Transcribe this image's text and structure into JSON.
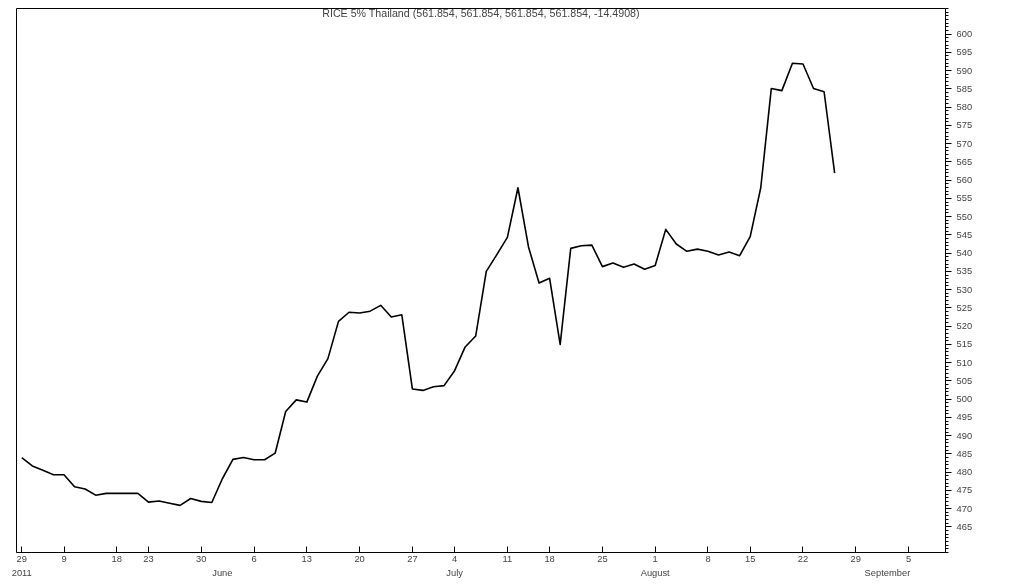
{
  "chart_data": {
    "type": "line",
    "title": "RICE 5% Thailand (561.854, 561.854, 561.854, 561.854, -14.4908)",
    "categories": [
      "29\n2011",
      null,
      null,
      null,
      "9",
      null,
      null,
      null,
      null,
      "18",
      null,
      null,
      "23",
      null,
      null,
      null,
      null,
      "30",
      null,
      "\nJune",
      null,
      null,
      "6",
      null,
      null,
      null,
      null,
      "13",
      null,
      null,
      null,
      null,
      "20",
      null,
      null,
      null,
      null,
      "27",
      null,
      null,
      null,
      "4\nJuly",
      null,
      null,
      null,
      null,
      "11",
      null,
      null,
      null,
      "18",
      null,
      null,
      null,
      null,
      "25",
      null,
      null,
      null,
      null,
      "1\nAugust",
      null,
      null,
      null,
      null,
      "8",
      null,
      null,
      null,
      "15",
      null,
      null,
      null,
      null,
      "22",
      null,
      null,
      null,
      null,
      "29",
      null,
      null,
      "\nSeptember",
      null,
      "5",
      null,
      null,
      null
    ],
    "series": [
      {
        "color": "#000000",
        "values": [
          484.0,
          481.7,
          480.5,
          479.3,
          479.3,
          476.0,
          475.4,
          473.7,
          474.2,
          474.2,
          474.2,
          474.2,
          471.8,
          472.1,
          471.5,
          470.9,
          472.8,
          472.0,
          471.7,
          478.2,
          483.5,
          484.0,
          483.4,
          483.4,
          485.2,
          496.6,
          499.8,
          499.2,
          506.3,
          511.1,
          521.3,
          523.8,
          523.6,
          524.1,
          525.7,
          522.5,
          523.1,
          502.8,
          502.4,
          503.4,
          503.7,
          507.8,
          514.3,
          517.3,
          535.0,
          539.6,
          544.3,
          557.9,
          541.7,
          531.8,
          533.1,
          515.0,
          541.3,
          542.0,
          542.2,
          536.3,
          537.3,
          536.1,
          537.0,
          535.6,
          536.6,
          546.5,
          542.5,
          540.5,
          541.1,
          540.5,
          539.5,
          540.3,
          539.3,
          544.5,
          557.9,
          585.1,
          584.5,
          592.0,
          591.8,
          585.1,
          584.2,
          561.9,
          null,
          null,
          null,
          null,
          null,
          null,
          null,
          null,
          null,
          null
        ]
      }
    ],
    "ylim": [
      458,
      607
    ],
    "yticks": [
      465,
      470,
      475,
      480,
      485,
      490,
      495,
      500,
      505,
      510,
      515,
      520,
      525,
      530,
      535,
      540,
      545,
      550,
      555,
      560,
      565,
      570,
      575,
      580,
      585,
      590,
      595,
      600
    ],
    "grid": false,
    "line_style": "solid"
  }
}
